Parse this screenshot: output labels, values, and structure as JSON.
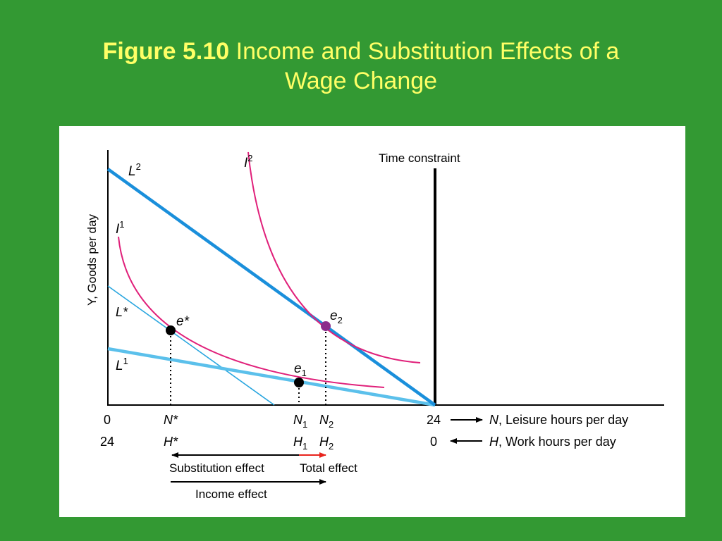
{
  "slide": {
    "title_bold": "Figure 5.10",
    "title_rest": "Income and Substitution Effects of a",
    "title_line2": "Wage Change"
  },
  "diagram": {
    "y_axis_label": "Y, Goods per day",
    "time_constraint_label": "Time constraint",
    "curves": {
      "L2": {
        "letter": "L",
        "sup": "2"
      },
      "L_star": {
        "letter": "L*"
      },
      "L1": {
        "letter": "L",
        "sup": "1"
      },
      "I1": {
        "letter": "I",
        "sup": "1"
      },
      "I2": {
        "letter": "I",
        "sup": "2"
      }
    },
    "points": {
      "e_star": {
        "letter": "e*"
      },
      "e1": {
        "letter": "e",
        "sub": "1"
      },
      "e2": {
        "letter": "e",
        "sub": "2"
      }
    },
    "x_axis": {
      "row1_start": "0",
      "row2_start": "24",
      "N_star": "N*",
      "H_star": "H*",
      "N1_letter": "N",
      "N1_sub": "1",
      "N2_letter": "N",
      "N2_sub": "2",
      "H1_letter": "H",
      "H1_sub": "1",
      "H2_letter": "H",
      "H2_sub": "2",
      "row1_end": "24",
      "row2_end": "0",
      "leisure_var": "N",
      "leisure_label": ", Leisure hours per day",
      "work_var": "H",
      "work_label": ", Work hours per day"
    },
    "effects": {
      "substitution": "Substitution effect",
      "total": "Total effect",
      "income": "Income effect"
    },
    "colors": {
      "budget_line": "#1a8fdb",
      "budget_line_light": "#5bc0eb",
      "indifference": "#e0207a",
      "e2_point": "#8b2d8b",
      "total_arrow": "#e8231c"
    }
  }
}
